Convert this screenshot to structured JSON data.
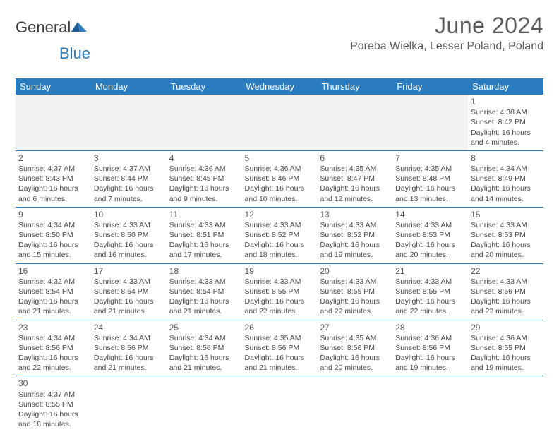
{
  "brand": {
    "part1": "General",
    "part2": "Blue"
  },
  "title": "June 2024",
  "location": "Poreba Wielka, Lesser Poland, Poland",
  "colors": {
    "accent": "#2b7bbf",
    "text": "#4a4a4a",
    "header_text": "#ffffff"
  },
  "weekday_headers": [
    "Sunday",
    "Monday",
    "Tuesday",
    "Wednesday",
    "Thursday",
    "Friday",
    "Saturday"
  ],
  "grid": [
    [
      null,
      null,
      null,
      null,
      null,
      null,
      {
        "day": "1",
        "sunrise": "Sunrise: 4:38 AM",
        "sunset": "Sunset: 8:42 PM",
        "daylight1": "Daylight: 16 hours",
        "daylight2": "and 4 minutes."
      }
    ],
    [
      {
        "day": "2",
        "sunrise": "Sunrise: 4:37 AM",
        "sunset": "Sunset: 8:43 PM",
        "daylight1": "Daylight: 16 hours",
        "daylight2": "and 6 minutes."
      },
      {
        "day": "3",
        "sunrise": "Sunrise: 4:37 AM",
        "sunset": "Sunset: 8:44 PM",
        "daylight1": "Daylight: 16 hours",
        "daylight2": "and 7 minutes."
      },
      {
        "day": "4",
        "sunrise": "Sunrise: 4:36 AM",
        "sunset": "Sunset: 8:45 PM",
        "daylight1": "Daylight: 16 hours",
        "daylight2": "and 9 minutes."
      },
      {
        "day": "5",
        "sunrise": "Sunrise: 4:36 AM",
        "sunset": "Sunset: 8:46 PM",
        "daylight1": "Daylight: 16 hours",
        "daylight2": "and 10 minutes."
      },
      {
        "day": "6",
        "sunrise": "Sunrise: 4:35 AM",
        "sunset": "Sunset: 8:47 PM",
        "daylight1": "Daylight: 16 hours",
        "daylight2": "and 12 minutes."
      },
      {
        "day": "7",
        "sunrise": "Sunrise: 4:35 AM",
        "sunset": "Sunset: 8:48 PM",
        "daylight1": "Daylight: 16 hours",
        "daylight2": "and 13 minutes."
      },
      {
        "day": "8",
        "sunrise": "Sunrise: 4:34 AM",
        "sunset": "Sunset: 8:49 PM",
        "daylight1": "Daylight: 16 hours",
        "daylight2": "and 14 minutes."
      }
    ],
    [
      {
        "day": "9",
        "sunrise": "Sunrise: 4:34 AM",
        "sunset": "Sunset: 8:50 PM",
        "daylight1": "Daylight: 16 hours",
        "daylight2": "and 15 minutes."
      },
      {
        "day": "10",
        "sunrise": "Sunrise: 4:33 AM",
        "sunset": "Sunset: 8:50 PM",
        "daylight1": "Daylight: 16 hours",
        "daylight2": "and 16 minutes."
      },
      {
        "day": "11",
        "sunrise": "Sunrise: 4:33 AM",
        "sunset": "Sunset: 8:51 PM",
        "daylight1": "Daylight: 16 hours",
        "daylight2": "and 17 minutes."
      },
      {
        "day": "12",
        "sunrise": "Sunrise: 4:33 AM",
        "sunset": "Sunset: 8:52 PM",
        "daylight1": "Daylight: 16 hours",
        "daylight2": "and 18 minutes."
      },
      {
        "day": "13",
        "sunrise": "Sunrise: 4:33 AM",
        "sunset": "Sunset: 8:52 PM",
        "daylight1": "Daylight: 16 hours",
        "daylight2": "and 19 minutes."
      },
      {
        "day": "14",
        "sunrise": "Sunrise: 4:33 AM",
        "sunset": "Sunset: 8:53 PM",
        "daylight1": "Daylight: 16 hours",
        "daylight2": "and 20 minutes."
      },
      {
        "day": "15",
        "sunrise": "Sunrise: 4:33 AM",
        "sunset": "Sunset: 8:53 PM",
        "daylight1": "Daylight: 16 hours",
        "daylight2": "and 20 minutes."
      }
    ],
    [
      {
        "day": "16",
        "sunrise": "Sunrise: 4:32 AM",
        "sunset": "Sunset: 8:54 PM",
        "daylight1": "Daylight: 16 hours",
        "daylight2": "and 21 minutes."
      },
      {
        "day": "17",
        "sunrise": "Sunrise: 4:33 AM",
        "sunset": "Sunset: 8:54 PM",
        "daylight1": "Daylight: 16 hours",
        "daylight2": "and 21 minutes."
      },
      {
        "day": "18",
        "sunrise": "Sunrise: 4:33 AM",
        "sunset": "Sunset: 8:54 PM",
        "daylight1": "Daylight: 16 hours",
        "daylight2": "and 21 minutes."
      },
      {
        "day": "19",
        "sunrise": "Sunrise: 4:33 AM",
        "sunset": "Sunset: 8:55 PM",
        "daylight1": "Daylight: 16 hours",
        "daylight2": "and 22 minutes."
      },
      {
        "day": "20",
        "sunrise": "Sunrise: 4:33 AM",
        "sunset": "Sunset: 8:55 PM",
        "daylight1": "Daylight: 16 hours",
        "daylight2": "and 22 minutes."
      },
      {
        "day": "21",
        "sunrise": "Sunrise: 4:33 AM",
        "sunset": "Sunset: 8:55 PM",
        "daylight1": "Daylight: 16 hours",
        "daylight2": "and 22 minutes."
      },
      {
        "day": "22",
        "sunrise": "Sunrise: 4:33 AM",
        "sunset": "Sunset: 8:56 PM",
        "daylight1": "Daylight: 16 hours",
        "daylight2": "and 22 minutes."
      }
    ],
    [
      {
        "day": "23",
        "sunrise": "Sunrise: 4:34 AM",
        "sunset": "Sunset: 8:56 PM",
        "daylight1": "Daylight: 16 hours",
        "daylight2": "and 22 minutes."
      },
      {
        "day": "24",
        "sunrise": "Sunrise: 4:34 AM",
        "sunset": "Sunset: 8:56 PM",
        "daylight1": "Daylight: 16 hours",
        "daylight2": "and 21 minutes."
      },
      {
        "day": "25",
        "sunrise": "Sunrise: 4:34 AM",
        "sunset": "Sunset: 8:56 PM",
        "daylight1": "Daylight: 16 hours",
        "daylight2": "and 21 minutes."
      },
      {
        "day": "26",
        "sunrise": "Sunrise: 4:35 AM",
        "sunset": "Sunset: 8:56 PM",
        "daylight1": "Daylight: 16 hours",
        "daylight2": "and 21 minutes."
      },
      {
        "day": "27",
        "sunrise": "Sunrise: 4:35 AM",
        "sunset": "Sunset: 8:56 PM",
        "daylight1": "Daylight: 16 hours",
        "daylight2": "and 20 minutes."
      },
      {
        "day": "28",
        "sunrise": "Sunrise: 4:36 AM",
        "sunset": "Sunset: 8:56 PM",
        "daylight1": "Daylight: 16 hours",
        "daylight2": "and 19 minutes."
      },
      {
        "day": "29",
        "sunrise": "Sunrise: 4:36 AM",
        "sunset": "Sunset: 8:55 PM",
        "daylight1": "Daylight: 16 hours",
        "daylight2": "and 19 minutes."
      }
    ],
    [
      {
        "day": "30",
        "sunrise": "Sunrise: 4:37 AM",
        "sunset": "Sunset: 8:55 PM",
        "daylight1": "Daylight: 16 hours",
        "daylight2": "and 18 minutes."
      },
      null,
      null,
      null,
      null,
      null,
      null
    ]
  ]
}
